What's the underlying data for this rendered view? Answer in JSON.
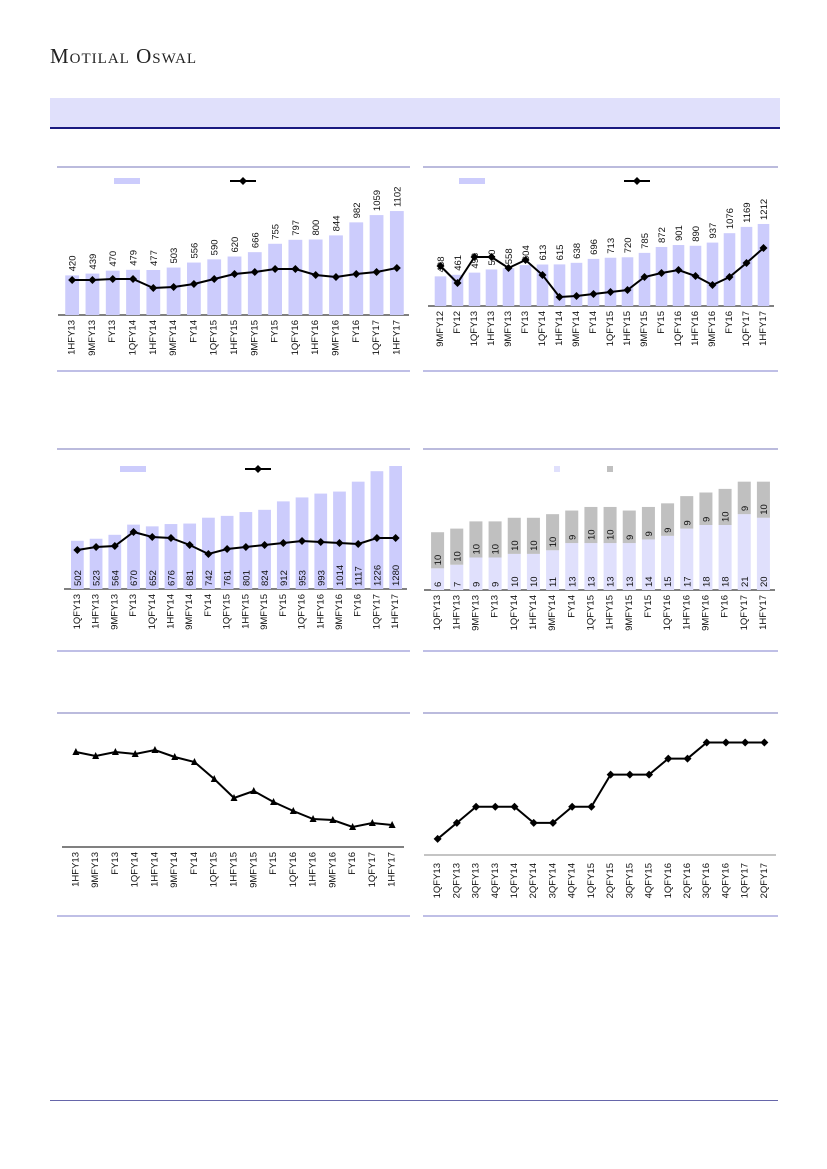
{
  "header": {
    "logo_text": "Motilal Oswal"
  },
  "colors": {
    "bar": "#ccccfc",
    "bar_light": "#e0e0fc",
    "bar_gray": "#c0c0c0",
    "line": "#000000",
    "rule": "#7777bb",
    "band": "#e0e0fb",
    "band_border": "#1a1a80"
  },
  "chart_data": [
    {
      "type": "bar+line",
      "categories": [
        "1HFY13",
        "9MFY13",
        "FY13",
        "1QFY14",
        "1HFY14",
        "9MFY14",
        "FY14",
        "1QFY15",
        "1HFY15",
        "9MFY15",
        "FY15",
        "1QFY16",
        "1HFY16",
        "9MFY16",
        "FY16",
        "1QFY17",
        "1HFY17"
      ],
      "bars": [
        420,
        439,
        470,
        479,
        477,
        503,
        556,
        590,
        620,
        666,
        755,
        797,
        800,
        844,
        982,
        1059,
        1102
      ],
      "line": [
        35,
        35,
        36,
        36,
        27,
        28,
        31,
        36,
        41,
        43,
        46,
        46,
        40,
        38,
        41,
        43,
        47
      ],
      "bar_ylim": [
        0,
        1378
      ],
      "line_ylim": [
        0,
        130
      ],
      "bar_labels": "above"
    },
    {
      "type": "bar+line",
      "categories": [
        "9MFY12",
        "FY12",
        "1QFY13",
        "1HFY13",
        "9MFY13",
        "FY13",
        "1QFY14",
        "1HFY14",
        "9MFY14",
        "FY14",
        "1QFY15",
        "1HFY15",
        "9MFY15",
        "FY15",
        "1QFY16",
        "1HFY16",
        "9MFY16",
        "FY16",
        "1QFY17",
        "1HFY17"
      ],
      "bars": [
        438,
        461,
        493,
        540,
        558,
        604,
        613,
        615,
        638,
        696,
        713,
        720,
        785,
        872,
        901,
        890,
        937,
        1076,
        1169,
        1212
      ],
      "line": [
        40,
        23,
        49,
        49,
        38,
        46,
        31,
        9,
        10,
        12,
        14,
        16,
        29,
        33,
        36,
        30,
        21,
        29,
        43,
        58
      ],
      "bar_ylim": [
        0,
        1921
      ],
      "line_ylim": [
        0,
        130
      ],
      "bar_labels": "above"
    },
    {
      "type": "bar+line",
      "categories": [
        "1QFY13",
        "1HFY13",
        "9MFY13",
        "FY13",
        "1QFY14",
        "1HFY14",
        "9MFY14",
        "FY14",
        "1QFY15",
        "1HFY15",
        "9MFY15",
        "FY15",
        "1QFY16",
        "1HFY16",
        "9MFY16",
        "FY16",
        "1QFY17",
        "1HFY17"
      ],
      "bars": [
        502,
        523,
        564,
        670,
        652,
        676,
        681,
        742,
        761,
        801,
        824,
        912,
        953,
        993,
        1014,
        1117,
        1226,
        1280
      ],
      "line": [
        39,
        42,
        43,
        57,
        52,
        51,
        44,
        35,
        40,
        42,
        44,
        46,
        48,
        47,
        46,
        45,
        51,
        51
      ],
      "bar_ylim": [
        0,
        1405
      ],
      "line_ylim": [
        0,
        135
      ],
      "bar_labels": "inside"
    },
    {
      "type": "stacked-bar",
      "categories": [
        "1QFY13",
        "1HFY13",
        "9MFY13",
        "FY13",
        "1QFY14",
        "1HFY14",
        "9MFY14",
        "FY14",
        "1QFY15",
        "1HFY15",
        "9MFY15",
        "FY15",
        "1QFY16",
        "1HFY16",
        "9MFY16",
        "FY16",
        "1QFY17",
        "1HFY17"
      ],
      "series": [
        {
          "name": "",
          "values": [
            6,
            7,
            9,
            9,
            10,
            10,
            11,
            13,
            13,
            13,
            13,
            14,
            15,
            17,
            18,
            18,
            21,
            20
          ]
        },
        {
          "name": "",
          "values": [
            10,
            10,
            10,
            10,
            10,
            10,
            10,
            9,
            10,
            10,
            9,
            9,
            9,
            9,
            9,
            10,
            9,
            10
          ]
        }
      ],
      "ylim": [
        0,
        36
      ]
    },
    {
      "type": "line",
      "categories": [
        "1HFY13",
        "9MFY13",
        "FY13",
        "1QFY14",
        "1HFY14",
        "9MFY14",
        "FY14",
        "1QFY15",
        "1HFY15",
        "9MFY15",
        "FY15",
        "1QFY16",
        "1HFY16",
        "9MFY16",
        "FY16",
        "1QFY17",
        "1HFY17"
      ],
      "values": [
        95,
        91,
        95,
        93,
        97,
        90,
        85,
        68,
        49,
        56,
        45,
        36,
        28,
        27,
        20,
        24,
        22
      ],
      "ylim": [
        0,
        120
      ],
      "marker": "triangle"
    },
    {
      "type": "line",
      "categories": [
        "1QFY13",
        "2QFY13",
        "3QFY13",
        "4QFY13",
        "1QFY14",
        "2QFY14",
        "3QFY14",
        "4QFY14",
        "1QFY15",
        "2QFY15",
        "3QFY15",
        "4QFY15",
        "1QFY16",
        "2QFY16",
        "3QFY16",
        "4QFY16",
        "1QFY17",
        "2QFY17"
      ],
      "values": [
        1,
        2,
        3,
        3,
        3,
        2,
        2,
        3,
        3,
        5,
        5,
        5,
        6,
        6,
        7,
        7,
        7,
        7
      ],
      "ylim": [
        0,
        8.4
      ],
      "marker": "diamond"
    }
  ]
}
